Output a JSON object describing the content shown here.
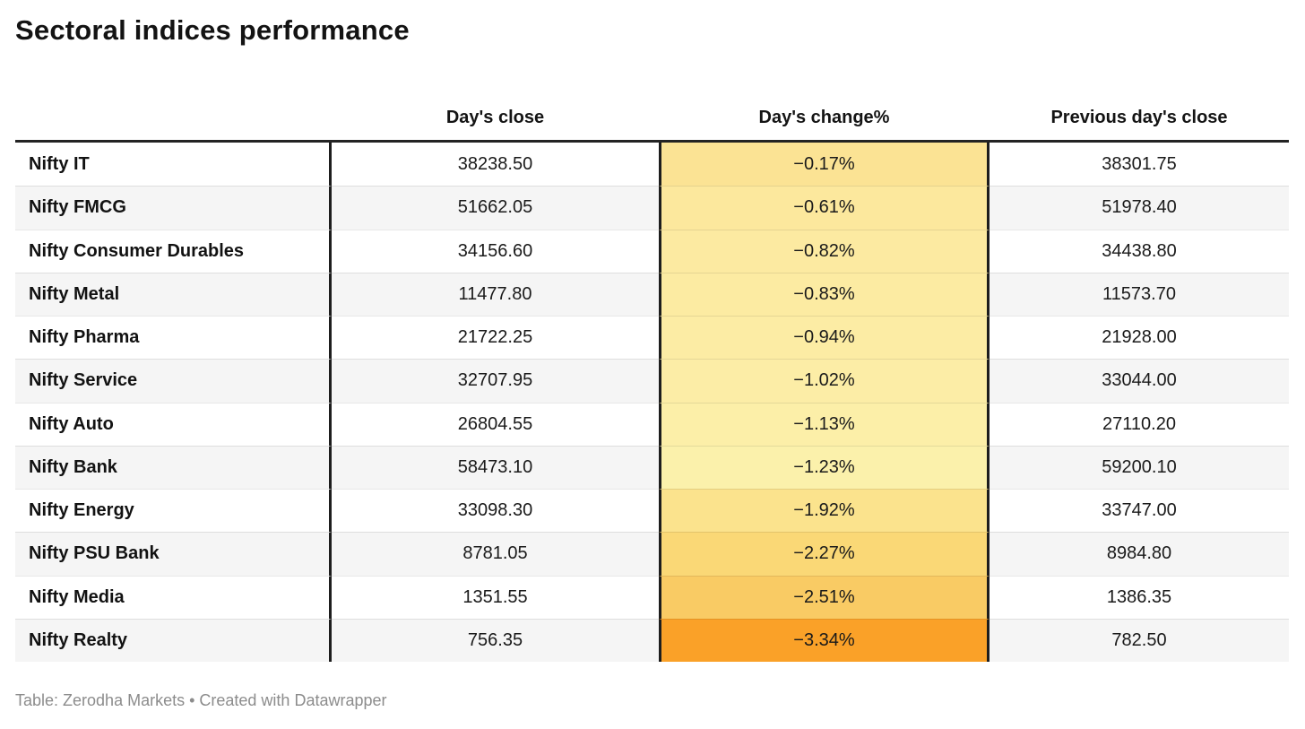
{
  "title": "Sectoral indices performance",
  "footer": "Table: Zerodha Markets • Created with Datawrapper",
  "table": {
    "headers": [
      "Day's close",
      "Day's change%",
      "Previous day's close"
    ],
    "rows": [
      {
        "name": "Nifty IT",
        "close": "38238.50",
        "change": "−0.17%",
        "prev": "38301.75",
        "color": "#FBE394"
      },
      {
        "name": "Nifty FMCG",
        "close": "51662.05",
        "change": "−0.61%",
        "prev": "51978.40",
        "color": "#FCE89D"
      },
      {
        "name": "Nifty Consumer Durables",
        "close": "34156.60",
        "change": "−0.82%",
        "prev": "34438.80",
        "color": "#FCEAA1"
      },
      {
        "name": "Nifty Metal",
        "close": "11477.80",
        "change": "−0.83%",
        "prev": "11573.70",
        "color": "#FCEBA2"
      },
      {
        "name": "Nifty Pharma",
        "close": "21722.25",
        "change": "−0.94%",
        "prev": "21928.00",
        "color": "#FCECA4"
      },
      {
        "name": "Nifty Service",
        "close": "32707.95",
        "change": "−1.02%",
        "prev": "33044.00",
        "color": "#FCEDA6"
      },
      {
        "name": "Nifty Auto",
        "close": "26804.55",
        "change": "−1.13%",
        "prev": "27110.20",
        "color": "#FCEFA8"
      },
      {
        "name": "Nifty Bank",
        "close": "58473.10",
        "change": "−1.23%",
        "prev": "59200.10",
        "color": "#FBF1AB"
      },
      {
        "name": "Nifty Energy",
        "close": "33098.30",
        "change": "−1.92%",
        "prev": "33747.00",
        "color": "#FBE38D"
      },
      {
        "name": "Nifty PSU Bank",
        "close": "8781.05",
        "change": "−2.27%",
        "prev": "8984.80",
        "color": "#FAD876"
      },
      {
        "name": "Nifty Media",
        "close": "1351.55",
        "change": "−2.51%",
        "prev": "1386.35",
        "color": "#F9CB64"
      },
      {
        "name": "Nifty Realty",
        "close": "756.35",
        "change": "−3.34%",
        "prev": "782.50",
        "color": "#FAA128"
      }
    ]
  },
  "colors": {
    "row_alt_background": "#f5f5f5",
    "table_border_dark": "#1d1d1d",
    "header_rule": "#232323",
    "footer_text": "#8c8c8c",
    "heatmap_min_color": "#FBF1AB",
    "heatmap_max_color": "#FAA128"
  },
  "chart_data": {
    "type": "table",
    "title": "Sectoral indices performance",
    "columns": [
      "",
      "Day's close",
      "Day's change%",
      "Previous day's close"
    ],
    "rows": [
      [
        "Nifty IT",
        38238.5,
        -0.17,
        38301.75
      ],
      [
        "Nifty FMCG",
        51662.05,
        -0.61,
        51978.4
      ],
      [
        "Nifty Consumer Durables",
        34156.6,
        -0.82,
        34438.8
      ],
      [
        "Nifty Metal",
        11477.8,
        -0.83,
        11573.7
      ],
      [
        "Nifty Pharma",
        21722.25,
        -0.94,
        21928.0
      ],
      [
        "Nifty Service",
        32707.95,
        -1.02,
        33044.0
      ],
      [
        "Nifty Auto",
        26804.55,
        -1.13,
        27110.2
      ],
      [
        "Nifty Bank",
        58473.1,
        -1.23,
        59200.1
      ],
      [
        "Nifty Energy",
        33098.3,
        -1.92,
        33747.0
      ],
      [
        "Nifty PSU Bank",
        8781.05,
        -2.27,
        8984.8
      ],
      [
        "Nifty Media",
        1351.55,
        -2.51,
        1386.35
      ],
      [
        "Nifty Realty",
        756.35,
        -3.34,
        782.5
      ]
    ],
    "heatmap": {
      "column": "Day's change%",
      "value_range": [
        -3.34,
        -0.17
      ],
      "palette": "pale-yellow to orange (more negative = more orange)"
    },
    "source": "Zerodha Markets",
    "tool": "Datawrapper"
  }
}
